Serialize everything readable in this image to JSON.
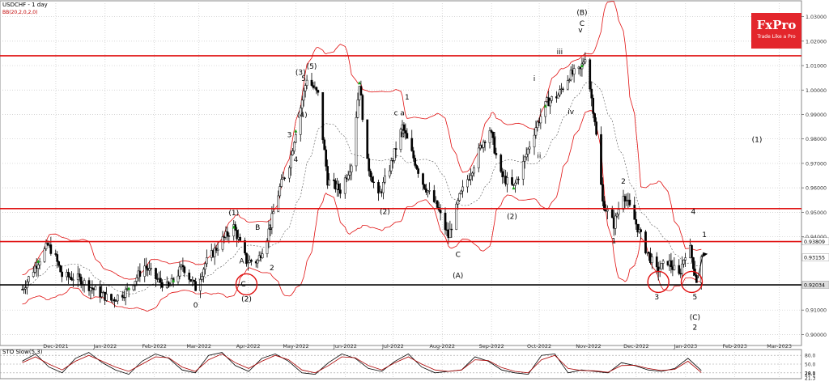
{
  "header": {
    "symbol_line": "USDCHF - 1 day",
    "indicator_line": "BB(20,2,0,2,0)",
    "stoch_label": "STO Slow(5,3)"
  },
  "logo": {
    "brand": "FxPro",
    "tagline": "Trade Like a Pro"
  },
  "colors": {
    "resistance": "#e01010",
    "support": "#000000",
    "bands": "#e01010",
    "midband": "#555555",
    "candles": "#000000",
    "arrows_up": "#14a014"
  },
  "chart_data": [
    {
      "type": "candlestick",
      "title": "USDCHF - 1 day",
      "indicator": "BB(20,2,0,2,0)",
      "ylim": [
        0.8955,
        1.0365
      ],
      "y_ticks": [
        "1.03000",
        "1.02000",
        "1.01000",
        "1.00000",
        "0.99000",
        "0.98000",
        "0.97000",
        "0.96000",
        "0.95000",
        "0.94000",
        "0.91000",
        "0.90000"
      ],
      "x_ticks": [
        "Dec-2021",
        "Jan-2022",
        "Feb-2022",
        "Mar-2022",
        "Apr-2022",
        "May-2022",
        "Jun-2022",
        "Jul-2022",
        "Aug-2022",
        "Sep-2022",
        "Oct-2022",
        "Nov-2022",
        "Dec-2022",
        "Jan-2023",
        "Feb-2023",
        "Mar-2023"
      ],
      "price_labels": {
        "current": "0.93155",
        "support": "0.92034",
        "resistance_mid": "0.93809"
      },
      "horizontal_levels": [
        {
          "kind": "resistance",
          "value": 1.014
        },
        {
          "kind": "resistance",
          "value": 0.9515
        },
        {
          "kind": "resistance",
          "value": 0.938
        },
        {
          "kind": "support",
          "value": 0.9203
        }
      ],
      "price_path": [
        [
          "2021-11-15",
          0.9185
        ],
        [
          "2021-11-25",
          0.93
        ],
        [
          "2021-12-01",
          0.9365
        ],
        [
          "2021-12-05",
          0.933
        ],
        [
          "2021-12-10",
          0.924
        ],
        [
          "2021-12-20",
          0.923
        ],
        [
          "2021-12-31",
          0.918
        ],
        [
          "2022-01-10",
          0.914
        ],
        [
          "2022-01-20",
          0.918
        ],
        [
          "2022-01-31",
          0.928
        ],
        [
          "2022-02-07",
          0.923
        ],
        [
          "2022-02-15",
          0.919
        ],
        [
          "2022-02-24",
          0.928
        ],
        [
          "2022-03-04",
          0.919
        ],
        [
          "2022-03-10",
          0.929
        ],
        [
          "2022-03-20",
          0.938
        ],
        [
          "2022-03-28",
          0.944
        ],
        [
          "2022-04-05",
          0.93
        ],
        [
          "2022-04-12",
          0.93
        ],
        [
          "2022-04-18",
          0.94
        ],
        [
          "2022-04-26",
          0.96
        ],
        [
          "2022-05-02",
          0.97
        ],
        [
          "2022-05-08",
          0.99
        ],
        [
          "2022-05-13",
          1.005
        ],
        [
          "2022-05-20",
          0.998
        ],
        [
          "2022-05-26",
          0.963
        ],
        [
          "2022-06-03",
          0.959
        ],
        [
          "2022-06-10",
          0.97
        ],
        [
          "2022-06-15",
          1.003
        ],
        [
          "2022-06-20",
          0.97
        ],
        [
          "2022-06-27",
          0.956
        ],
        [
          "2022-07-05",
          0.97
        ],
        [
          "2022-07-12",
          0.985
        ],
        [
          "2022-07-18",
          0.974
        ],
        [
          "2022-07-25",
          0.962
        ],
        [
          "2022-08-03",
          0.952
        ],
        [
          "2022-08-10",
          0.94
        ],
        [
          "2022-08-17",
          0.956
        ],
        [
          "2022-08-25",
          0.968
        ],
        [
          "2022-08-31",
          0.978
        ],
        [
          "2022-09-05",
          0.984
        ],
        [
          "2022-09-12",
          0.965
        ],
        [
          "2022-09-20",
          0.96
        ],
        [
          "2022-09-26",
          0.97
        ],
        [
          "2022-10-04",
          0.985
        ],
        [
          "2022-10-11",
          0.995
        ],
        [
          "2022-10-18",
          0.998
        ],
        [
          "2022-10-25",
          1.006
        ],
        [
          "2022-11-01",
          1.008
        ],
        [
          "2022-11-04",
          1.014
        ],
        [
          "2022-11-10",
          0.988
        ],
        [
          "2022-11-15",
          0.954
        ],
        [
          "2022-11-22",
          0.945
        ],
        [
          "2022-11-28",
          0.958
        ],
        [
          "2022-12-05",
          0.947
        ],
        [
          "2022-12-12",
          0.935
        ],
        [
          "2022-12-19",
          0.926
        ],
        [
          "2022-12-26",
          0.93
        ],
        [
          "2023-01-02",
          0.924
        ],
        [
          "2023-01-08",
          0.938
        ],
        [
          "2023-01-13",
          0.922
        ],
        [
          "2023-01-16",
          0.931
        ]
      ],
      "wave_labels": [
        "(1)",
        "A",
        "B",
        "C",
        "(2)",
        "1",
        "2",
        "3",
        "4",
        "5",
        "(3)",
        "(4)",
        "(5)",
        "0",
        "i",
        "ii",
        "iii",
        "iv",
        "v",
        "a",
        "b",
        "c",
        "(A)",
        "(B)",
        "(C)",
        "1",
        "2",
        "3",
        "4",
        "5",
        "(1)",
        "2"
      ]
    },
    {
      "type": "line",
      "title": "STO Slow(5,3)",
      "ylim": [
        0,
        100
      ],
      "y_ticks": [
        "80.0",
        "50.0",
        "20.0"
      ],
      "value_labels": {
        "main": "28.1",
        "signal": "21.3"
      },
      "series": [
        {
          "values": [
            60,
            85,
            40,
            20,
            70,
            90,
            55,
            30,
            15,
            60,
            85,
            70,
            30,
            20,
            80,
            90,
            45,
            25,
            70,
            85,
            60,
            20,
            15,
            55,
            85,
            70,
            35,
            25,
            60,
            85,
            40,
            20,
            25,
            30,
            75,
            60,
            30,
            20,
            15,
            80,
            85,
            20,
            30,
            25,
            20,
            55,
            45,
            30,
            25,
            35,
            70,
            28
          ]
        },
        {
          "values": [
            55,
            75,
            50,
            30,
            60,
            80,
            60,
            40,
            25,
            50,
            75,
            72,
            40,
            25,
            65,
            85,
            55,
            35,
            60,
            80,
            65,
            30,
            20,
            45,
            75,
            72,
            45,
            30,
            55,
            75,
            50,
            30,
            25,
            30,
            65,
            62,
            38,
            25,
            20,
            65,
            80,
            35,
            28,
            27,
            22,
            45,
            46,
            35,
            28,
            32,
            60,
            21
          ]
        }
      ]
    }
  ]
}
